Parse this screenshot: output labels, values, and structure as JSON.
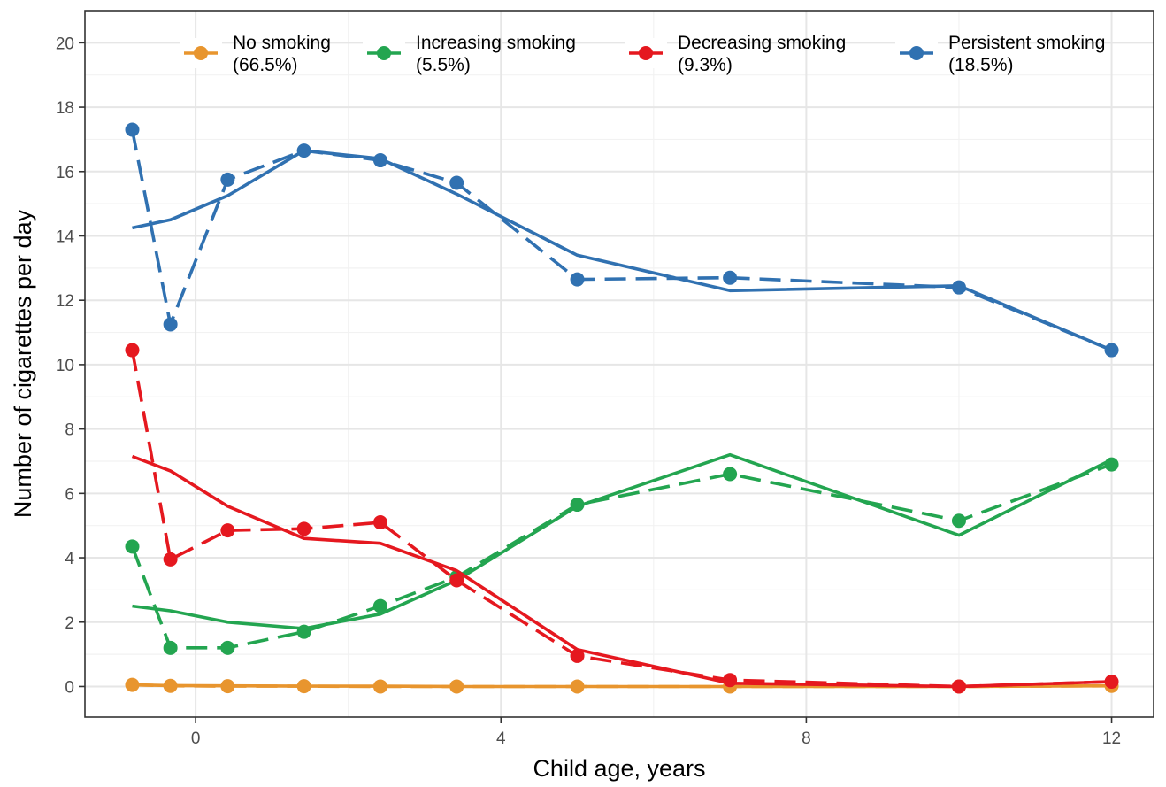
{
  "chart_data": {
    "type": "line",
    "title": "",
    "xlabel": "Child age, years",
    "ylabel": "Number of cigarettes per day",
    "xlim": [
      -1.45,
      12.55
    ],
    "ylim": [
      -0.95,
      21.0
    ],
    "x_ticks": [
      0,
      4,
      8,
      12
    ],
    "x_tick_labels": [
      "0",
      "4",
      "8",
      "12"
    ],
    "y_ticks": [
      0,
      2,
      4,
      6,
      8,
      10,
      12,
      14,
      16,
      18,
      20
    ],
    "y_tick_labels": [
      "0",
      "2",
      "4",
      "6",
      "8",
      "10",
      "12",
      "14",
      "16",
      "18",
      "20"
    ],
    "grid": true,
    "legend_position": "top",
    "x": [
      -0.83,
      -0.33,
      0.42,
      1.42,
      2.42,
      3.42,
      5.0,
      7.0,
      10.0,
      12.0
    ],
    "series": [
      {
        "name": "No smoking\n(66.5%)",
        "color": "#E8952E",
        "observed": [
          0.05,
          0.02,
          0.01,
          0.01,
          0.0,
          0.0,
          0.0,
          0.0,
          0.0,
          0.02
        ],
        "estimated": [
          0.05,
          0.03,
          0.02,
          0.01,
          0.01,
          0.0,
          0.0,
          0.0,
          0.0,
          0.02
        ]
      },
      {
        "name": "Increasing smoking\n(5.5%)",
        "color": "#23A550",
        "observed": [
          4.35,
          1.2,
          1.2,
          1.7,
          2.5,
          3.4,
          5.65,
          6.6,
          5.15,
          6.9
        ],
        "estimated": [
          2.5,
          2.35,
          2.0,
          1.8,
          2.25,
          3.3,
          5.6,
          7.2,
          4.7,
          7.05
        ]
      },
      {
        "name": "Decreasing smoking\n(9.3%)",
        "color": "#E5181F",
        "observed": [
          10.45,
          3.95,
          4.85,
          4.9,
          5.1,
          3.3,
          0.95,
          0.2,
          0.0,
          0.15
        ],
        "estimated": [
          7.15,
          6.7,
          5.6,
          4.6,
          4.45,
          3.6,
          1.15,
          0.1,
          0.0,
          0.15
        ]
      },
      {
        "name": "Persistent smoking\n(18.5%)",
        "color": "#3071B1",
        "observed": [
          17.3,
          11.25,
          15.75,
          16.65,
          16.35,
          15.65,
          12.65,
          12.7,
          12.4,
          10.45
        ],
        "estimated": [
          14.25,
          14.5,
          15.25,
          16.65,
          16.4,
          15.3,
          13.4,
          12.3,
          12.45,
          10.45
        ]
      }
    ]
  }
}
